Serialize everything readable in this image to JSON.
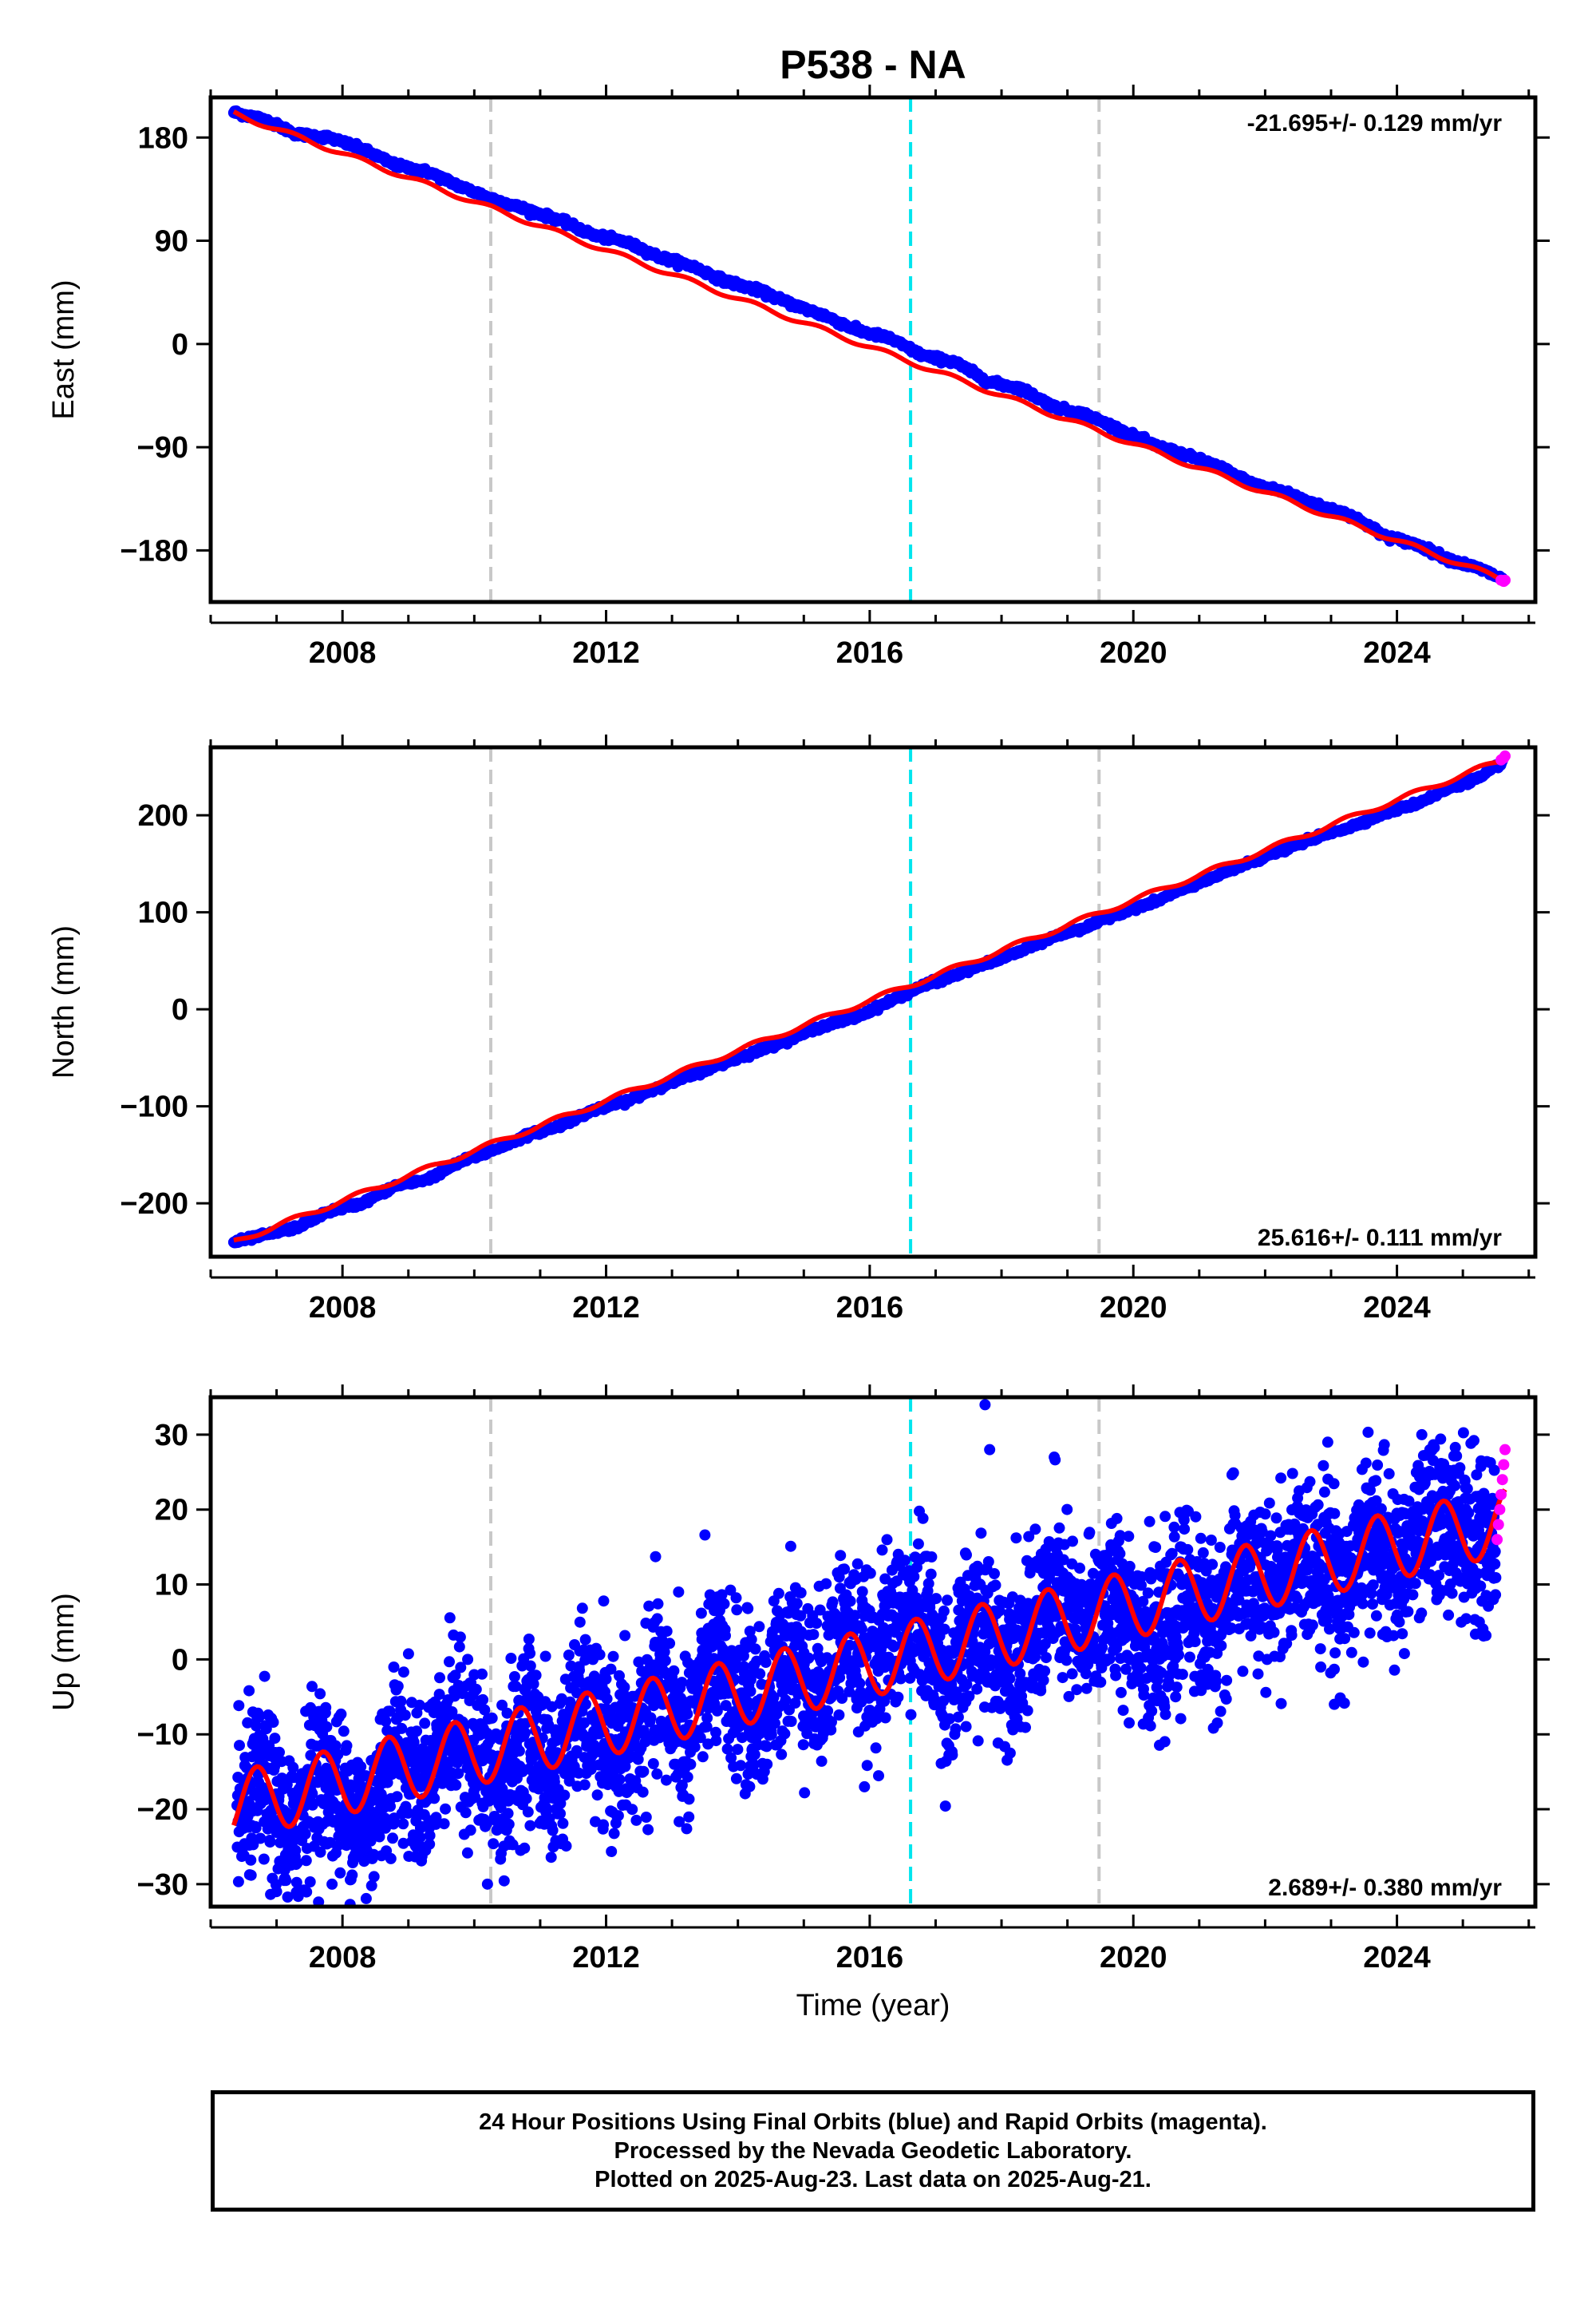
{
  "title": "P538 - NA",
  "colors": {
    "final_orbits": "#0000ff",
    "rapid_orbits": "#ff00ff",
    "model": "#ff0000",
    "equipment_change": "#c8c8c8",
    "earthquake": "#00e5ee"
  },
  "footer": {
    "line1": "24 Hour Positions Using Final Orbits (blue) and Rapid Orbits (magenta).",
    "line2": "Processed by the Nevada Geodetic Laboratory.",
    "line3": "Plotted on 2025-Aug-23. Last data on 2025-Aug-21."
  },
  "chart_data": [
    {
      "type": "scatter",
      "component": "east",
      "ylabel": "East (mm)",
      "xlabel": "",
      "xlim": [
        2006.0,
        2026.1
      ],
      "ylim": [
        -225,
        215
      ],
      "x_ticks": [
        2008,
        2012,
        2016,
        2020,
        2024
      ],
      "y_ticks": [
        180,
        90,
        0,
        -90,
        -180
      ],
      "y_tick_labels": [
        "180",
        "90",
        "0",
        "−90",
        "−180"
      ],
      "velocity_label": "-21.695+/- 0.129 mm/yr",
      "velocity_label_position": "top-right",
      "vertical_lines": [
        {
          "x": 2010.25,
          "kind": "equipment_change"
        },
        {
          "x": 2016.62,
          "kind": "earthquake"
        },
        {
          "x": 2019.48,
          "kind": "equipment_change"
        }
      ],
      "series": [
        {
          "kind": "final_orbits",
          "x": [
            2006.35,
            2006.8,
            2007.3,
            2007.8,
            2008.3,
            2008.8,
            2009.3,
            2009.8,
            2010.3,
            2010.8,
            2011.3,
            2011.8,
            2012.3,
            2012.8,
            2013.3,
            2013.8,
            2014.3,
            2014.8,
            2015.3,
            2015.8,
            2016.3,
            2016.8,
            2017.3,
            2017.8,
            2018.3,
            2018.8,
            2019.3,
            2019.8,
            2020.3,
            2020.8,
            2021.3,
            2021.8,
            2022.3,
            2022.8,
            2023.3,
            2023.8,
            2024.3,
            2024.8,
            2025.3,
            2025.6
          ],
          "y": [
            202,
            196,
            183,
            180,
            170,
            156,
            150,
            137,
            126,
            117,
            108,
            95,
            89,
            76,
            68,
            55,
            47,
            35,
            25,
            12,
            5,
            -10,
            -16,
            -33,
            -39,
            -55,
            -62,
            -75,
            -88,
            -97,
            -107,
            -122,
            -129,
            -141,
            -149,
            -167,
            -175,
            -188,
            -197,
            -205
          ]
        },
        {
          "kind": "rapid_orbits",
          "x": [
            2025.58,
            2025.62,
            2025.64
          ],
          "y": [
            -206,
            -207,
            -206
          ]
        },
        {
          "kind": "model",
          "x": [
            2006.35,
            2025.64
          ],
          "y": [
            201,
            -206
          ]
        }
      ]
    },
    {
      "type": "scatter",
      "component": "north",
      "ylabel": "North (mm)",
      "xlabel": "",
      "xlim": [
        2006.0,
        2026.1
      ],
      "ylim": [
        -255,
        270
      ],
      "x_ticks": [
        2008,
        2012,
        2016,
        2020,
        2024
      ],
      "y_ticks": [
        200,
        100,
        0,
        -100,
        -200
      ],
      "y_tick_labels": [
        "200",
        "100",
        "0",
        "−100",
        "−200"
      ],
      "velocity_label": "25.616+/- 0.111 mm/yr",
      "velocity_label_position": "bottom-right",
      "vertical_lines": [
        {
          "x": 2010.25,
          "kind": "equipment_change"
        },
        {
          "x": 2016.62,
          "kind": "earthquake"
        },
        {
          "x": 2019.48,
          "kind": "equipment_change"
        }
      ],
      "series": [
        {
          "kind": "final_orbits",
          "x": [
            2006.35,
            2006.8,
            2007.3,
            2007.8,
            2008.3,
            2008.8,
            2009.3,
            2009.8,
            2010.3,
            2010.8,
            2011.3,
            2011.8,
            2012.3,
            2012.8,
            2013.3,
            2013.8,
            2014.3,
            2014.8,
            2015.3,
            2015.8,
            2016.3,
            2016.8,
            2017.3,
            2017.8,
            2018.3,
            2018.8,
            2019.3,
            2019.8,
            2020.3,
            2020.8,
            2021.3,
            2021.8,
            2022.3,
            2022.8,
            2023.3,
            2023.8,
            2024.3,
            2024.8,
            2025.3,
            2025.6
          ],
          "y": [
            -240,
            -233,
            -225,
            -208,
            -200,
            -182,
            -175,
            -157,
            -145,
            -130,
            -120,
            -104,
            -95,
            -80,
            -68,
            -55,
            -43,
            -30,
            -17,
            -8,
            8,
            24,
            35,
            48,
            60,
            75,
            85,
            100,
            110,
            125,
            138,
            152,
            165,
            178,
            188,
            202,
            212,
            228,
            240,
            255
          ]
        },
        {
          "kind": "rapid_orbits",
          "x": [
            2025.58,
            2025.62,
            2025.64
          ],
          "y": [
            257,
            259,
            261
          ]
        },
        {
          "kind": "model",
          "x": [
            2006.35,
            2025.64
          ],
          "y": [
            -240,
            258
          ]
        }
      ]
    },
    {
      "type": "scatter",
      "component": "up",
      "ylabel": "Up (mm)",
      "xlabel": "Time (year)",
      "xlim": [
        2006.0,
        2026.1
      ],
      "ylim": [
        -33,
        35
      ],
      "x_ticks": [
        2008,
        2012,
        2016,
        2020,
        2024
      ],
      "y_ticks": [
        30,
        20,
        10,
        0,
        -10,
        -20,
        -30
      ],
      "y_tick_labels": [
        "30",
        "20",
        "10",
        "0",
        "−10",
        "−20",
        "−30"
      ],
      "velocity_label": "2.689+/- 0.380 mm/yr",
      "velocity_label_position": "bottom-right",
      "vertical_lines": [
        {
          "x": 2010.25,
          "kind": "equipment_change"
        },
        {
          "x": 2016.62,
          "kind": "earthquake"
        },
        {
          "x": 2019.48,
          "kind": "equipment_change"
        }
      ],
      "series": [
        {
          "kind": "final_orbits",
          "x": [
            2006.4,
            2006.8,
            2007.2,
            2007.6,
            2008.0,
            2008.4,
            2008.8,
            2009.2,
            2009.6,
            2010.0,
            2010.4,
            2010.8,
            2011.2,
            2011.6,
            2012.0,
            2012.4,
            2012.8,
            2013.2,
            2013.6,
            2014.0,
            2014.4,
            2014.8,
            2015.2,
            2015.6,
            2016.0,
            2016.4,
            2016.8,
            2017.2,
            2017.6,
            2018.0,
            2018.4,
            2018.8,
            2019.2,
            2019.6,
            2020.0,
            2020.4,
            2020.8,
            2021.2,
            2021.6,
            2022.0,
            2022.4,
            2022.8,
            2023.2,
            2023.6,
            2024.0,
            2024.4,
            2024.8,
            2025.2,
            2025.5
          ],
          "y": [
            -22,
            -16,
            -25,
            -14,
            -19,
            -22,
            -11,
            -18,
            -9,
            -12,
            -18,
            -8,
            -17,
            -6,
            -12,
            -12,
            -3,
            -11,
            0,
            -5,
            -8,
            3,
            -5,
            5,
            -2,
            5,
            6,
            -4,
            5,
            1,
            2,
            9,
            3,
            8,
            6,
            0,
            9,
            3,
            12,
            8,
            12,
            14,
            9,
            17,
            11,
            18,
            19,
            15,
            14
          ],
          "scatter_band": 6
        },
        {
          "kind": "final_orbits_outliers",
          "x": [
            2017.75,
            2017.82,
            2018.8,
            2022.95,
            2023.05,
            2010.2,
            2011.8,
            2007.0,
            2009.9,
            2013.1
          ],
          "y": [
            34,
            28,
            27,
            29,
            -6,
            -30,
            0,
            -31,
            0,
            9
          ]
        },
        {
          "kind": "rapid_orbits",
          "x": [
            2025.52,
            2025.54,
            2025.56,
            2025.58,
            2025.6,
            2025.62,
            2025.64
          ],
          "y": [
            16,
            18,
            20,
            22,
            24,
            26,
            28
          ]
        },
        {
          "kind": "model",
          "annual_amplitude": 4.5,
          "x": [
            2006.35,
            2025.64
          ],
          "y": [
            -19.5,
            18.5
          ]
        }
      ]
    }
  ]
}
